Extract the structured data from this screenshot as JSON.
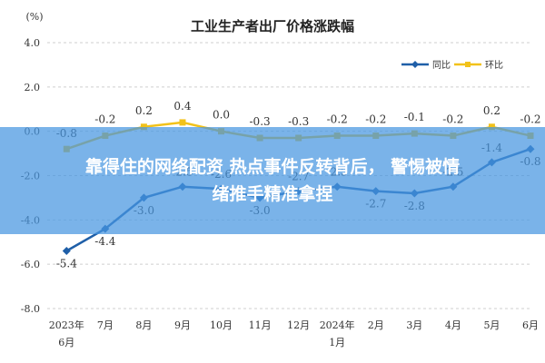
{
  "chart_data": {
    "type": "line",
    "title": "工业生产者出厂价格涨跌幅",
    "unit": "(%)",
    "ylim": [
      -8,
      4
    ],
    "yticks": [
      "4.0",
      "2.0",
      "0.0",
      "-2.0",
      "-4.0",
      "-6.0",
      "-8.0"
    ],
    "ytick_values": [
      4,
      2,
      0,
      -2,
      -4,
      -6,
      -8
    ],
    "categories": [
      [
        "2023年",
        "6月"
      ],
      [
        "7月"
      ],
      [
        "8月"
      ],
      [
        "9月"
      ],
      [
        "10月"
      ],
      [
        "11月"
      ],
      [
        "12月"
      ],
      [
        "2024年",
        "1月"
      ],
      [
        "2月"
      ],
      [
        "3月"
      ],
      [
        "4月"
      ],
      [
        "5月"
      ],
      [
        "6月"
      ]
    ],
    "legend_position": "top-right",
    "grid": "horizontal",
    "series": [
      {
        "name": "同比",
        "color": "#1f5fa8",
        "marker": "diamond",
        "values": [
          -5.4,
          -4.4,
          -3.0,
          -2.5,
          -2.6,
          -3.0,
          -2.7,
          -2.5,
          -2.7,
          -2.8,
          -2.5,
          -1.4,
          -0.8
        ],
        "labels": [
          "-5.4",
          "-4.4",
          "-3.0",
          "-2.5",
          "-2.6",
          "-3.0",
          "-2.7",
          "-2.5",
          "-2.7",
          "-2.8",
          "-2.5",
          "-1.4",
          "-0.8"
        ]
      },
      {
        "name": "环比",
        "color": "#f2c21a",
        "marker": "square",
        "values": [
          -0.8,
          -0.2,
          0.2,
          0.4,
          0.0,
          -0.3,
          -0.3,
          -0.2,
          -0.2,
          -0.1,
          -0.2,
          0.2,
          -0.2
        ],
        "labels": [
          "-0.8",
          "-0.2",
          "0.2",
          "0.4",
          "0.0",
          "-0.3",
          "-0.3",
          "-0.2",
          "-0.2",
          "-0.1",
          "-0.2",
          "0.2",
          "-0.2"
        ]
      }
    ]
  },
  "overlay": {
    "line1": "靠得住的网络配资 热点事件反转背后， 警惕被情",
    "line2": "绪推手精准拿捏"
  }
}
